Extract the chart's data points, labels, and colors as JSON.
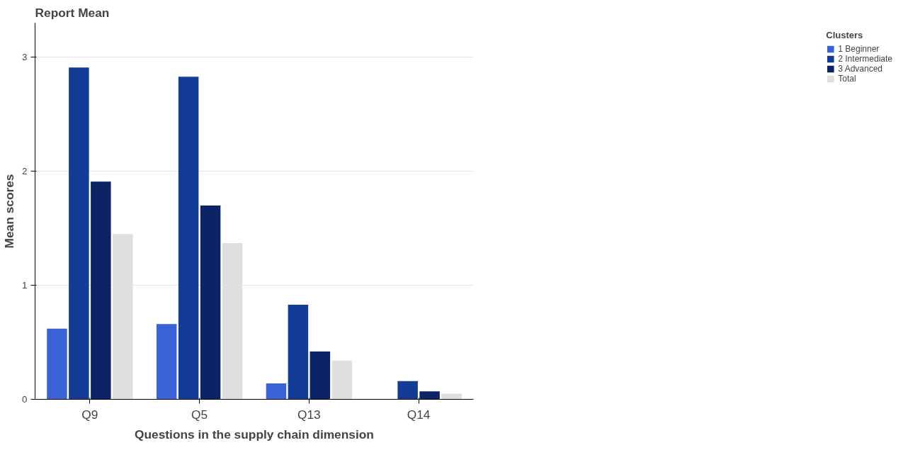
{
  "chart_data": {
    "type": "bar",
    "title": "Report Mean",
    "xlabel": "Questions in the supply chain dimension",
    "ylabel": "Mean scores",
    "categories": [
      "Q9",
      "Q5",
      "Q13",
      "Q14"
    ],
    "series": [
      {
        "name": "1 Beginner",
        "color": "#3a63d8",
        "values": [
          0.62,
          0.66,
          0.14,
          0
        ]
      },
      {
        "name": "2 Intermediate",
        "color": "#133c96",
        "values": [
          2.91,
          2.83,
          0.83,
          0.16
        ]
      },
      {
        "name": "3 Advanced",
        "color": "#0c2366",
        "values": [
          1.91,
          1.7,
          0.42,
          0.07
        ]
      },
      {
        "name": "Total",
        "color": "#e0dfdf",
        "values": [
          1.45,
          1.37,
          0.34,
          0.05
        ]
      }
    ],
    "legend_title": "Clusters",
    "legend": "right",
    "grid": "y",
    "ylim": [
      0,
      3.3
    ],
    "yticks": [
      0,
      1,
      2,
      3
    ]
  }
}
